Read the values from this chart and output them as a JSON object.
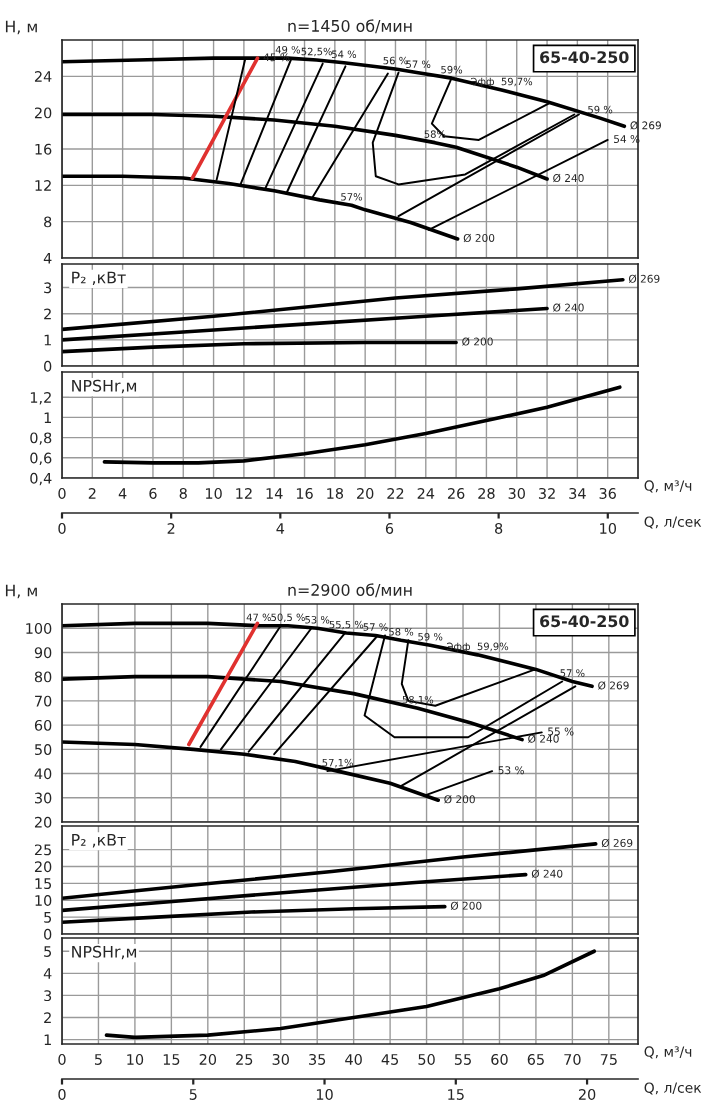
{
  "chart_data": [
    {
      "type": "line",
      "title": "n=1450 об/мин",
      "ylabel": "H, м",
      "xlim": [
        0,
        38
      ],
      "ylim": [
        4,
        28
      ],
      "xticks": [
        0,
        2,
        4,
        6,
        8,
        10,
        12,
        14,
        16,
        18,
        20,
        22,
        24,
        26,
        28,
        30,
        32,
        34,
        36
      ],
      "yticks": [
        4,
        8,
        12,
        16,
        20,
        24
      ],
      "grid": true,
      "tick_labels": "y",
      "series": [
        {
          "color": "#000000",
          "x": [
            0,
            5,
            10,
            12.9,
            14.9,
            16.8,
            18.6,
            22,
            23.5,
            25.7,
            29,
            32,
            35.5,
            37.1
          ],
          "values": [
            25.6,
            25.8,
            26,
            26,
            26,
            25.8,
            25.5,
            24.8,
            24.4,
            23.8,
            22.5,
            21.2,
            19.4,
            18.5
          ]
        },
        {
          "color": "#000000",
          "x": [
            0,
            6,
            10,
            14,
            18,
            22,
            24.6,
            26,
            30,
            32
          ],
          "values": [
            19.8,
            19.8,
            19.6,
            19.2,
            18.5,
            17.5,
            16.7,
            16.2,
            14,
            12.7
          ]
        },
        {
          "color": "#000000",
          "x": [
            0,
            4,
            8,
            11,
            14,
            17,
            19.1,
            20,
            23,
            26.1
          ],
          "values": [
            13,
            13,
            12.8,
            12.2,
            11.4,
            10.4,
            9.8,
            9.3,
            7.9,
            6.1
          ]
        },
        {
          "color": "#e0312f",
          "x": [
            8.6,
            12.9
          ],
          "values": [
            12.8,
            26
          ]
        },
        {
          "color": "#000000",
          "x": [
            10.2,
            12.1
          ],
          "values": [
            12.6,
            26
          ]
        },
        {
          "color": "#000000",
          "x": [
            11.8,
            15.1
          ],
          "values": [
            12.2,
            25.8
          ]
        },
        {
          "color": "#000000",
          "x": [
            13.4,
            17.2
          ],
          "values": [
            11.6,
            25.4
          ]
        },
        {
          "color": "#000000",
          "x": [
            14.8,
            18.7
          ],
          "values": [
            11.1,
            25.1
          ]
        },
        {
          "color": "#000000",
          "x": [
            16.5,
            21.5
          ],
          "values": [
            10.6,
            24.3
          ]
        },
        {
          "color": "#000000",
          "x": [
            25.7,
            24.4,
            25.2,
            27.5,
            32.1
          ],
          "values": [
            23.8,
            18.8,
            17.4,
            17,
            21
          ]
        },
        {
          "color": "#000000",
          "x": [
            22.2,
            20.5,
            20.7,
            22.2,
            26.6,
            33.8
          ],
          "values": [
            24.4,
            16.7,
            13,
            12.1,
            13.2,
            19.8
          ]
        },
        {
          "color": "#000000",
          "x": [
            22.2,
            34.1
          ],
          "values": [
            8.6,
            19.8
          ]
        },
        {
          "color": "#000000",
          "x": [
            24.2,
            36
          ],
          "values": [
            7.1,
            17
          ]
        }
      ],
      "annotations": [
        "65-40-250",
        {
          "text": "45 %",
          "x": 12.9,
          "y": 26
        },
        {
          "text": "49 %",
          "x": 14.9,
          "y": 26
        },
        {
          "text": "52,5%",
          "x": 16.8,
          "y": 25.8
        },
        {
          "text": "54 %",
          "x": 18.6,
          "y": 25.5
        },
        {
          "text": "56 %",
          "x": 22,
          "y": 24.8
        },
        {
          "text": "57 %",
          "x": 23.5,
          "y": 24.4
        },
        {
          "text": "59%",
          "x": 25.7,
          "y": 23.8
        },
        {
          "text": "Эфф  59,7%",
          "x": 29,
          "y": 22.5
        },
        {
          "text": "59 %",
          "x": 35.5,
          "y": 19.4
        },
        {
          "text": "58%",
          "x": 24.6,
          "y": 16.7
        },
        {
          "text": "57%",
          "x": 19.1,
          "y": 9.8
        },
        {
          "text": "54 %",
          "x": 36,
          "y": 17
        },
        {
          "text": "Ø 269",
          "x": 37.1,
          "y": 18.5
        },
        {
          "text": "Ø 240",
          "x": 32,
          "y": 12.7
        },
        {
          "text": "Ø 200",
          "x": 26.1,
          "y": 6.1
        }
      ]
    },
    {
      "type": "line",
      "ylabel": "P₂ ,кВт",
      "xlim": [
        0,
        38
      ],
      "ylim": [
        0,
        3.9
      ],
      "xticks": [
        0,
        2,
        4,
        6,
        8,
        10,
        12,
        14,
        16,
        18,
        20,
        22,
        24,
        26,
        28,
        30,
        32,
        34,
        36
      ],
      "yticks": [
        0,
        1,
        2,
        3
      ],
      "grid": true,
      "tick_labels": "y",
      "series": [
        {
          "color": "#000000",
          "x": [
            0,
            10,
            22,
            30,
            37
          ],
          "values": [
            1.4,
            1.9,
            2.6,
            2.95,
            3.3
          ]
        },
        {
          "color": "#000000",
          "x": [
            0,
            8,
            16,
            24,
            32
          ],
          "values": [
            1,
            1.3,
            1.6,
            1.9,
            2.2
          ]
        },
        {
          "color": "#000000",
          "x": [
            0,
            6,
            12,
            20,
            26
          ],
          "values": [
            0.55,
            0.72,
            0.85,
            0.9,
            0.9
          ]
        }
      ],
      "annotations": [
        {
          "text": "Ø 269",
          "x": 37,
          "y": 3.3
        },
        {
          "text": "Ø 240",
          "x": 32,
          "y": 2.2
        },
        {
          "text": "Ø 200",
          "x": 26,
          "y": 0.9
        }
      ]
    },
    {
      "type": "line",
      "ylabel": "NPSHr,м",
      "xlabel": "Q, м³/ч",
      "x2label": "Q, л/сек",
      "xlim": [
        0,
        38
      ],
      "ylim": [
        0.4,
        1.45
      ],
      "xticks": [
        0,
        2,
        4,
        6,
        8,
        10,
        12,
        14,
        16,
        18,
        20,
        22,
        24,
        26,
        28,
        30,
        32,
        34,
        36
      ],
      "yticks": [
        {
          "value": 0.4,
          "label": "0,4"
        },
        {
          "value": 0.6,
          "label": "0,6"
        },
        {
          "value": 0.8,
          "label": "0,8"
        },
        1,
        {
          "value": 1.2,
          "label": "1,2"
        }
      ],
      "x2lim": [
        0,
        10.56
      ],
      "x2ticks": [
        0,
        2,
        4,
        6,
        8,
        10
      ],
      "grid": true,
      "series": [
        {
          "color": "#000000",
          "x": [
            2.8,
            6,
            9,
            12,
            16,
            20,
            24,
            28,
            32,
            36.8
          ],
          "values": [
            0.56,
            0.55,
            0.55,
            0.57,
            0.64,
            0.73,
            0.84,
            0.97,
            1.1,
            1.3
          ]
        }
      ]
    },
    {
      "type": "line",
      "title": "n=2900 об/мин",
      "ylabel": "H, м",
      "xlim": [
        0,
        79
      ],
      "ylim": [
        20,
        110
      ],
      "xticks": [
        0,
        5,
        10,
        15,
        20,
        25,
        30,
        35,
        40,
        45,
        50,
        55,
        60,
        65,
        70,
        75
      ],
      "yticks": [
        20,
        30,
        40,
        50,
        60,
        70,
        80,
        90,
        100
      ],
      "grid": true,
      "tick_labels": "y",
      "series": [
        {
          "color": "#000000",
          "x": [
            0,
            10,
            20,
            27,
            31,
            35,
            39,
            43,
            46.5,
            50.5,
            57,
            65,
            70,
            72.7
          ],
          "values": [
            101,
            102,
            102,
            101,
            101,
            100,
            98,
            97,
            95,
            93,
            89,
            83,
            78,
            76
          ]
        },
        {
          "color": "#000000",
          "x": [
            0,
            10,
            20,
            30,
            40,
            48.8,
            56,
            63.1
          ],
          "values": [
            79,
            80,
            80,
            78,
            73,
            67,
            61,
            54
          ]
        },
        {
          "color": "#000000",
          "x": [
            0,
            10,
            18,
            25,
            32,
            37.8,
            45,
            51.6
          ],
          "values": [
            53,
            52,
            50,
            48,
            45,
            41,
            36,
            29
          ]
        },
        {
          "color": "#e0312f",
          "x": [
            17.4,
            26.8
          ],
          "values": [
            52,
            102
          ]
        },
        {
          "color": "#000000",
          "x": [
            19,
            30
          ],
          "values": [
            51,
            101
          ]
        },
        {
          "color": "#000000",
          "x": [
            21.8,
            34.2
          ],
          "values": [
            50,
            100
          ]
        },
        {
          "color": "#000000",
          "x": [
            25.6,
            38.8
          ],
          "values": [
            49,
            98
          ]
        },
        {
          "color": "#000000",
          "x": [
            29.1,
            43.3
          ],
          "values": [
            48,
            97
          ]
        },
        {
          "color": "#000000",
          "x": [
            47.5,
            46.6,
            47.5,
            51.2,
            64.9
          ],
          "values": [
            95,
            77,
            70,
            68,
            83
          ]
        },
        {
          "color": "#000000",
          "x": [
            44.3,
            41.5,
            45.6,
            55.7,
            68.6
          ],
          "values": [
            97,
            64,
            55,
            55,
            78
          ]
        },
        {
          "color": "#000000",
          "x": [
            36.4,
            65.8
          ],
          "values": [
            41,
            57
          ]
        },
        {
          "color": "#000000",
          "x": [
            46.6,
            70.4
          ],
          "values": [
            35,
            76
          ]
        },
        {
          "color": "#000000",
          "x": [
            49.8,
            59
          ],
          "values": [
            31,
            41
          ]
        }
      ],
      "annotations": [
        "65-40-250",
        {
          "text": "47 %",
          "x": 27,
          "y": 101
        },
        {
          "text": "50,5 %",
          "x": 31,
          "y": 101
        },
        {
          "text": "53 %",
          "x": 35,
          "y": 100
        },
        {
          "text": "55,5 %",
          "x": 39,
          "y": 98
        },
        {
          "text": "57 %",
          "x": 43,
          "y": 97
        },
        {
          "text": "58 %",
          "x": 46.5,
          "y": 95
        },
        {
          "text": "59 %",
          "x": 50.5,
          "y": 93
        },
        {
          "text": "Эфф  59,9%",
          "x": 57,
          "y": 89
        },
        {
          "text": "57 %",
          "x": 70,
          "y": 78
        },
        {
          "text": "58,1%",
          "x": 48.8,
          "y": 67
        },
        {
          "text": "57,1%",
          "x": 37.8,
          "y": 41
        },
        {
          "text": "55 %",
          "x": 65.8,
          "y": 57
        },
        {
          "text": "53 %",
          "x": 59,
          "y": 41
        },
        {
          "text": "Ø 269",
          "x": 72.7,
          "y": 76
        },
        {
          "text": "Ø 240",
          "x": 63.1,
          "y": 54
        },
        {
          "text": "Ø 200",
          "x": 51.6,
          "y": 29
        }
      ]
    },
    {
      "type": "line",
      "ylabel": "P₂ ,кВт",
      "xlim": [
        0,
        79
      ],
      "ylim": [
        0,
        32
      ],
      "xticks": [
        0,
        5,
        10,
        15,
        20,
        25,
        30,
        35,
        40,
        45,
        50,
        55,
        60,
        65,
        70,
        75
      ],
      "yticks": [
        0,
        5,
        10,
        15,
        20,
        25
      ],
      "grid": true,
      "tick_labels": "y",
      "series": [
        {
          "color": "#000000",
          "x": [
            0,
            18,
            37,
            55,
            73.2
          ],
          "values": [
            10.6,
            14.5,
            18.5,
            22.8,
            26.7
          ]
        },
        {
          "color": "#000000",
          "x": [
            0,
            16,
            32,
            48,
            63.6
          ],
          "values": [
            7,
            9.8,
            12.5,
            15.2,
            17.6
          ]
        },
        {
          "color": "#000000",
          "x": [
            0,
            13,
            26,
            40,
            52.5
          ],
          "values": [
            3.5,
            5,
            6.5,
            7.5,
            8.1
          ]
        }
      ],
      "annotations": [
        {
          "text": "Ø 269",
          "x": 73.2,
          "y": 26.7
        },
        {
          "text": "Ø 240",
          "x": 63.6,
          "y": 17.6
        },
        {
          "text": "Ø 200",
          "x": 52.5,
          "y": 8.1
        }
      ]
    },
    {
      "type": "line",
      "ylabel": "NPSHr,м",
      "xlabel": "Q, м³/ч",
      "x2label": "Q, л/сек",
      "xlim": [
        0,
        79
      ],
      "ylim": [
        0.8,
        5.6
      ],
      "xticks": [
        0,
        5,
        10,
        15,
        20,
        25,
        30,
        35,
        40,
        45,
        50,
        55,
        60,
        65,
        70,
        75
      ],
      "yticks": [
        1,
        2,
        3,
        4,
        5
      ],
      "x2lim": [
        0,
        21.94
      ],
      "x2ticks": [
        0,
        5,
        10,
        15,
        20
      ],
      "grid": true,
      "series": [
        {
          "color": "#000000",
          "x": [
            6.1,
            10,
            20,
            30,
            40,
            50,
            60,
            66,
            73
          ],
          "values": [
            1.2,
            1.1,
            1.2,
            1.5,
            2,
            2.5,
            3.3,
            3.9,
            5
          ]
        }
      ]
    }
  ]
}
